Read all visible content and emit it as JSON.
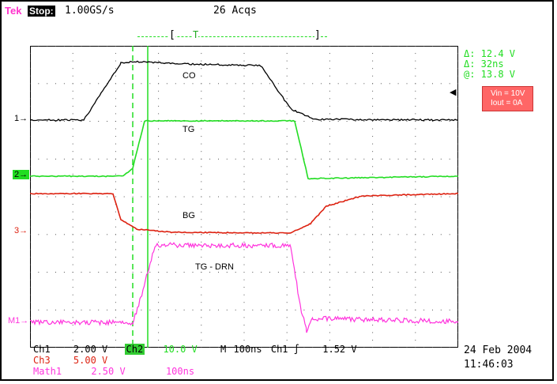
{
  "header": {
    "brand": "Tek",
    "state": "Stop:",
    "sample_rate": "1.00GS/s",
    "acquisitions": "26 Acqs",
    "trigger_window_left": "[",
    "trigger_marker": "T",
    "trigger_window_right": "]"
  },
  "cursor_readout": {
    "delta_v": "Δ: 12.4 V",
    "delta_t": "Δ: 32ns",
    "at_v": "@: 13.8 V"
  },
  "annotation": {
    "line1": "Vin = 10V",
    "line2": "Iout = 0A"
  },
  "traces": {
    "co": "CO",
    "tg": "TG",
    "bg": "BG",
    "tgdrn": "TG - DRN"
  },
  "channel_markers": {
    "ch1": "1",
    "ch2": "2",
    "ch3": "3",
    "math1": "M1"
  },
  "trigger_level_mark": "◀",
  "bottom": {
    "ch1_label": "Ch1",
    "ch1_scale": "2.00 V",
    "ch2_label": "Ch2",
    "ch2_scale": "10.0 V",
    "timebase_label": "M",
    "timebase": "100ns",
    "trig_source": "Ch1",
    "trig_slope": "∫",
    "trig_level": "1.52 V",
    "ch3_label": "Ch3",
    "ch3_scale": "5.00 V",
    "math_label": "Math1",
    "math_scale": "2.50 V",
    "math_time": "100ns",
    "date": "24 Feb 2004",
    "time": "11:46:03"
  },
  "colors": {
    "ch1": "#000000",
    "ch2": "#22dd22",
    "ch3": "#dd2211",
    "math": "#ff33dd",
    "badge": "#ff6666"
  }
}
